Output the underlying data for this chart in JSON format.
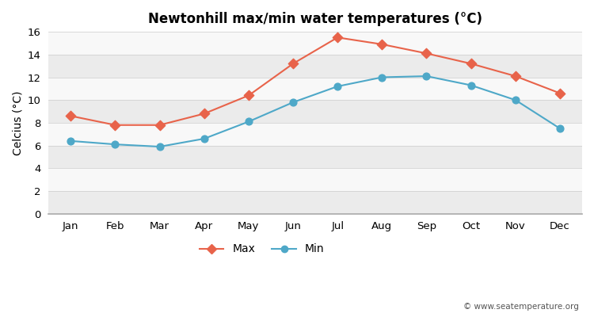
{
  "title": "Newtonhill max/min water temperatures (°C)",
  "ylabel": "Celcius (°C)",
  "months": [
    "Jan",
    "Feb",
    "Mar",
    "Apr",
    "May",
    "Jun",
    "Jul",
    "Aug",
    "Sep",
    "Oct",
    "Nov",
    "Dec"
  ],
  "max_values": [
    8.6,
    7.8,
    7.8,
    8.8,
    10.4,
    13.2,
    15.5,
    14.9,
    14.1,
    13.2,
    12.1,
    10.6
  ],
  "min_values": [
    6.4,
    6.1,
    5.9,
    6.6,
    8.1,
    9.8,
    11.2,
    12.0,
    12.1,
    11.3,
    10.0,
    7.5
  ],
  "max_color": "#e8634a",
  "min_color": "#4ea8c8",
  "bg_color": "#ffffff",
  "band_gray": "#ebebeb",
  "band_white": "#f8f8f8",
  "yticks": [
    0,
    2,
    4,
    6,
    8,
    10,
    12,
    14,
    16
  ],
  "ylim": [
    0,
    16
  ],
  "watermark": "© www.seatemperature.org",
  "legend_max": "Max",
  "legend_min": "Min"
}
